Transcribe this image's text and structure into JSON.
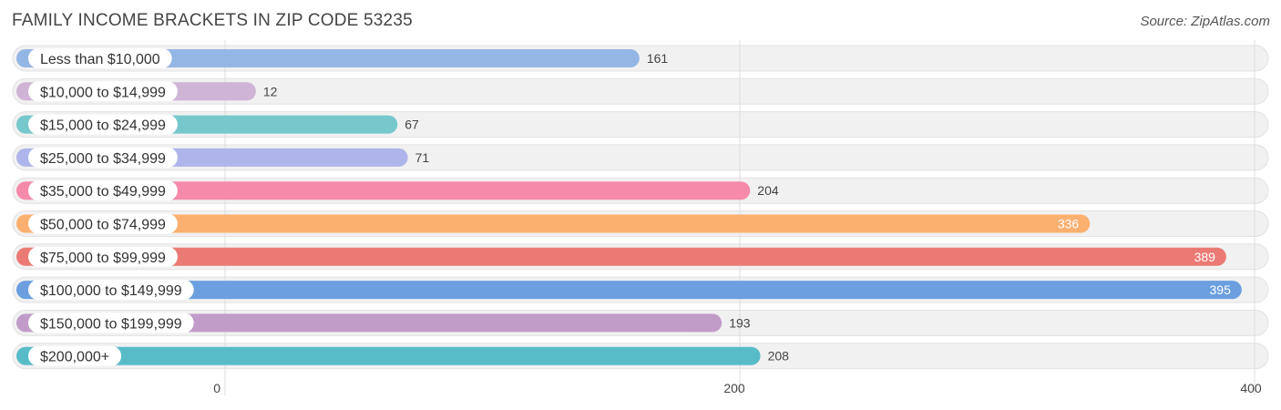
{
  "header": {
    "title": "FAMILY INCOME BRACKETS IN ZIP CODE 53235",
    "source": "Source: ZipAtlas.com"
  },
  "chart_data": {
    "type": "bar",
    "orientation": "horizontal",
    "title": "FAMILY INCOME BRACKETS IN ZIP CODE 53235",
    "xlabel": "",
    "ylabel": "",
    "xlim": [
      0,
      400
    ],
    "ticks": [
      0,
      200,
      400
    ],
    "grid": true,
    "categories": [
      "Less than $10,000",
      "$10,000 to $14,999",
      "$15,000 to $24,999",
      "$25,000 to $34,999",
      "$35,000 to $49,999",
      "$50,000 to $74,999",
      "$75,000 to $99,999",
      "$100,000 to $149,999",
      "$150,000 to $199,999",
      "$200,000+"
    ],
    "values": [
      161,
      12,
      67,
      71,
      204,
      336,
      389,
      395,
      193,
      208
    ],
    "colors": [
      "#93b6e4",
      "#d0b4d6",
      "#76c8cc",
      "#aeb5ea",
      "#f68aab",
      "#fbb06f",
      "#ec7a74",
      "#6b9fdf",
      "#c29cc9",
      "#58bcc8"
    ]
  }
}
